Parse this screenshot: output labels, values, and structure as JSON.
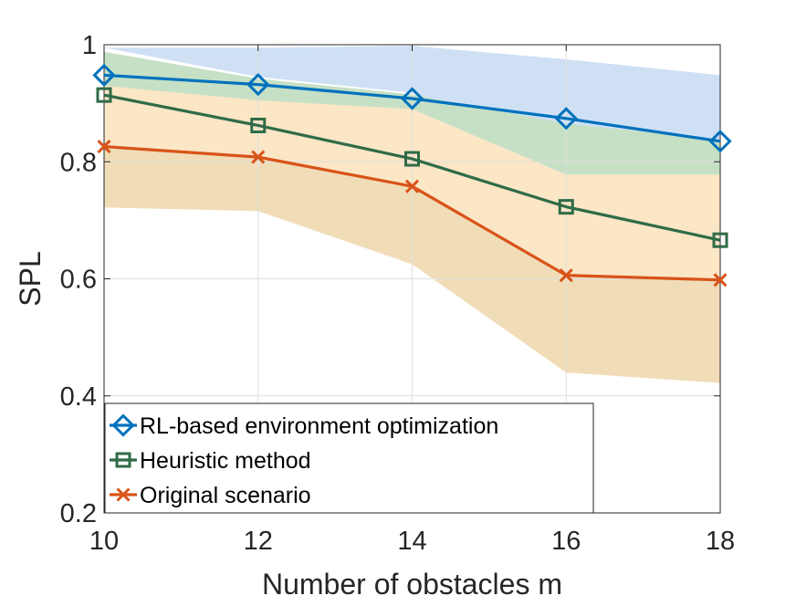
{
  "chart_data": {
    "type": "line",
    "title": "",
    "xlabel": "Number of obstacles m",
    "ylabel": "SPL",
    "x": [
      10,
      12,
      14,
      16,
      18
    ],
    "xlim": [
      10,
      18
    ],
    "ylim": [
      0.2,
      1.0
    ],
    "xticks": [
      "10",
      "12",
      "14",
      "16",
      "18"
    ],
    "yticks": [
      "0.2",
      "0.4",
      "0.6",
      "0.8",
      "1"
    ],
    "grid": true,
    "legend_location": "bottom-left",
    "series": [
      {
        "name": "RL-based environment optimization",
        "marker": "diamond",
        "color": "#0072BD",
        "band_color": "#cfe0f5",
        "values": [
          0.948,
          0.932,
          0.908,
          0.874,
          0.835
        ],
        "band_upper": [
          0.995,
          0.995,
          0.998,
          0.975,
          0.948
        ],
        "band_lower": [
          0.995,
          0.945,
          0.918,
          0.778,
          0.838
        ]
      },
      {
        "name": "Heuristic method",
        "marker": "square",
        "color": "#2f6b48",
        "band_color": "#c6e0c5",
        "values": [
          0.914,
          0.862,
          0.805,
          0.723,
          0.666
        ],
        "band_upper": [
          0.988,
          0.942,
          0.915,
          0.865,
          0.838
        ],
        "band_lower": [
          0.86,
          0.9,
          0.89,
          0.778,
          0.778
        ]
      },
      {
        "name": "Original scenario",
        "marker": "x",
        "color": "#D95319",
        "band_color": "#fbe6c6",
        "band_color_dark": "#f0ddb8",
        "values": [
          0.826,
          0.808,
          0.758,
          0.606,
          0.598
        ],
        "band_upper": [
          0.93,
          0.905,
          0.89,
          0.778,
          0.778
        ],
        "band_lower": [
          0.722,
          0.716,
          0.625,
          0.44,
          0.422
        ]
      }
    ]
  }
}
